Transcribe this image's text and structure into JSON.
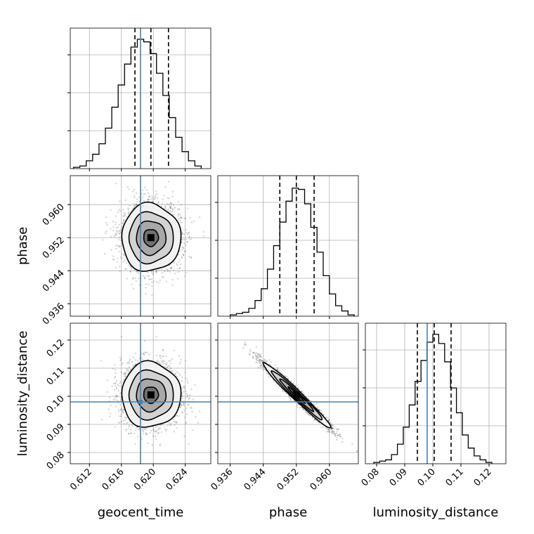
{
  "chart_data": {
    "type": "corner",
    "parameters": [
      "geocent_time",
      "phase",
      "luminosity_distance"
    ],
    "truth_color": "#4682b4",
    "hist_color": "#000000",
    "grid": true,
    "params": {
      "geocent_time": {
        "label": "geocent_time",
        "range": [
          0.6096,
          0.6272
        ],
        "ticks": [
          0.612,
          0.616,
          0.62,
          0.624
        ],
        "tick_labels": [
          "0.612",
          "0.616",
          "0.620",
          "0.624"
        ],
        "truth": 0.6184,
        "quantiles": [
          0.6177,
          0.6197,
          0.6219
        ],
        "hist": {
          "bin_edges": [
            0.61,
            0.6108,
            0.6116,
            0.6124,
            0.6132,
            0.614,
            0.6148,
            0.6156,
            0.6164,
            0.6172,
            0.618,
            0.6188,
            0.6196,
            0.6204,
            0.6212,
            0.622,
            0.6228,
            0.6236,
            0.6244,
            0.6252,
            0.626
          ],
          "counts": [
            0.01,
            0.02,
            0.06,
            0.11,
            0.19,
            0.31,
            0.47,
            0.64,
            0.8,
            0.93,
            0.99,
            0.97,
            0.88,
            0.73,
            0.56,
            0.39,
            0.24,
            0.13,
            0.06,
            0.02
          ]
        }
      },
      "phase": {
        "label": "phase",
        "range": [
          0.933,
          0.967
        ],
        "ticks": [
          0.936,
          0.944,
          0.952,
          0.96
        ],
        "tick_labels": [
          "0.936",
          "0.944",
          "0.952",
          "0.960"
        ],
        "truth": null,
        "quantiles": [
          0.948,
          0.952,
          0.9563
        ],
        "hist": {
          "bin_edges": [
            0.936,
            0.9375,
            0.939,
            0.9405,
            0.942,
            0.9435,
            0.945,
            0.9465,
            0.948,
            0.9495,
            0.951,
            0.9525,
            0.954,
            0.9555,
            0.957,
            0.9585,
            0.96,
            0.9615,
            0.963,
            0.9645,
            0.966
          ],
          "counts": [
            0.01,
            0.02,
            0.03,
            0.06,
            0.12,
            0.21,
            0.36,
            0.54,
            0.72,
            0.88,
            0.98,
            0.97,
            0.86,
            0.68,
            0.49,
            0.31,
            0.17,
            0.08,
            0.04,
            0.01
          ]
        }
      },
      "luminosity_distance": {
        "label": "luminosity_distance",
        "range": [
          0.076,
          0.126
        ],
        "ticks": [
          0.08,
          0.09,
          0.1,
          0.11,
          0.12
        ],
        "tick_labels": [
          "0.08",
          "0.09",
          "0.10",
          "0.11",
          "0.12"
        ],
        "truth": 0.098,
        "quantiles": [
          0.0945,
          0.1005,
          0.1065
        ],
        "hist": {
          "bin_edges": [
            0.079,
            0.0811,
            0.0832,
            0.0853,
            0.0874,
            0.0895,
            0.0916,
            0.0937,
            0.0958,
            0.0979,
            0.1,
            0.1021,
            0.1042,
            0.1063,
            0.1084,
            0.1105,
            0.1126,
            0.1147,
            0.1168,
            0.1189,
            0.121
          ],
          "counts": [
            0.01,
            0.02,
            0.03,
            0.07,
            0.15,
            0.28,
            0.45,
            0.63,
            0.79,
            0.93,
            0.99,
            0.92,
            0.78,
            0.58,
            0.39,
            0.22,
            0.12,
            0.06,
            0.03,
            0.01
          ]
        }
      }
    },
    "pairs": [
      {
        "x": "geocent_time",
        "y": "phase",
        "mean": [
          0.6197,
          0.952
        ],
        "std": [
          0.00185,
          0.0041
        ],
        "correlation": 0.0,
        "truth_x": 0.6184,
        "truth_y": null
      },
      {
        "x": "geocent_time",
        "y": "luminosity_distance",
        "mean": [
          0.6197,
          0.1005
        ],
        "std": [
          0.00185,
          0.0058
        ],
        "correlation": 0.0,
        "truth_x": 0.6184,
        "truth_y": 0.098
      },
      {
        "x": "phase",
        "y": "luminosity_distance",
        "mean": [
          0.952,
          0.1005
        ],
        "std": [
          0.0041,
          0.0058
        ],
        "correlation": -0.98,
        "truth_x": null,
        "truth_y": 0.098
      }
    ],
    "contour_levels_sigma": [
      0.5,
      1.0,
      1.5,
      2.0
    ]
  }
}
